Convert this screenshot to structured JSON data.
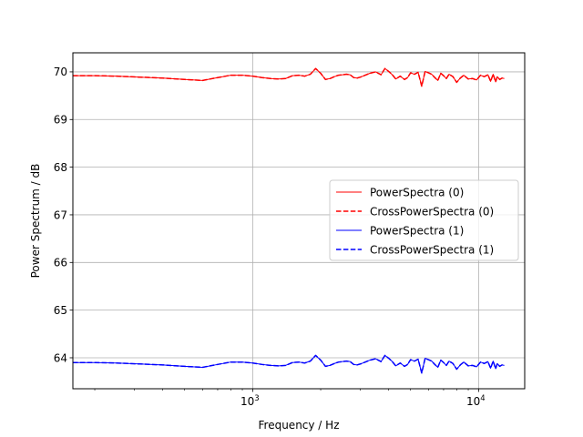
{
  "chart_data": {
    "type": "line",
    "xlabel": "Frequency / Hz",
    "ylabel": "Power Spectrum / dB",
    "xscale": "log",
    "xlim": [
      160,
      16000
    ],
    "ylim": [
      63.35,
      70.4
    ],
    "grid": true,
    "legend_position": "center-right",
    "x_major_ticks": [
      {
        "value": 1000,
        "base": "10",
        "exp": "3"
      },
      {
        "value": 10000,
        "base": "10",
        "exp": "4"
      }
    ],
    "y_ticks": [
      64,
      65,
      66,
      67,
      68,
      69,
      70
    ],
    "series": [
      {
        "name": "PowerSpectra (0)",
        "color": "#ff0000",
        "style": "solid",
        "x": [
          160,
          200,
          250,
          315,
          400,
          500,
          600,
          700,
          800,
          900,
          1000,
          1100,
          1200,
          1300,
          1400,
          1500,
          1600,
          1700,
          1800,
          1900,
          2000,
          2100,
          2200,
          2300,
          2400,
          2500,
          2600,
          2700,
          2800,
          2900,
          3000,
          3150,
          3300,
          3500,
          3700,
          3850,
          4000,
          4150,
          4300,
          4500,
          4700,
          4850,
          5000,
          5200,
          5400,
          5600,
          5800,
          6000,
          6200,
          6400,
          6600,
          6800,
          7000,
          7200,
          7400,
          7700,
          8000,
          8300,
          8600,
          9000,
          9400,
          9800,
          10200,
          10600,
          11000,
          11300,
          11600,
          11900,
          12100,
          12400,
          12700,
          13000
        ],
        "y": [
          69.92,
          69.92,
          69.91,
          69.89,
          69.87,
          69.84,
          69.82,
          69.88,
          69.93,
          69.93,
          69.91,
          69.88,
          69.86,
          69.85,
          69.86,
          69.92,
          69.93,
          69.91,
          69.95,
          70.07,
          69.97,
          69.84,
          69.86,
          69.9,
          69.93,
          69.94,
          69.95,
          69.94,
          69.88,
          69.87,
          69.89,
          69.93,
          69.97,
          70.0,
          69.94,
          70.07,
          70.01,
          69.94,
          69.85,
          69.91,
          69.84,
          69.88,
          69.98,
          69.95,
          69.99,
          69.7,
          70.01,
          69.98,
          69.95,
          69.88,
          69.82,
          69.97,
          69.92,
          69.86,
          69.95,
          69.9,
          69.78,
          69.87,
          69.93,
          69.85,
          69.86,
          69.83,
          69.93,
          69.9,
          69.94,
          69.8,
          69.95,
          69.79,
          69.9,
          69.84,
          69.87,
          69.86
        ]
      },
      {
        "name": "CrossPowerSpectra (0)",
        "color": "#ff0000",
        "style": "dashed",
        "x": [
          160,
          200,
          250,
          315,
          400,
          500,
          600,
          700,
          800,
          900,
          1000,
          1100,
          1200,
          1300,
          1400,
          1500,
          1600,
          1700,
          1800,
          1900,
          2000,
          2100,
          2200,
          2300,
          2400,
          2500,
          2600,
          2700,
          2800,
          2900,
          3000,
          3150,
          3300,
          3500,
          3700,
          3850,
          4000,
          4150,
          4300,
          4500,
          4700,
          4850,
          5000,
          5200,
          5400,
          5600,
          5800,
          6000,
          6200,
          6400,
          6600,
          6800,
          7000,
          7200,
          7400,
          7700,
          8000,
          8300,
          8600,
          9000,
          9400,
          9800,
          10200,
          10600,
          11000,
          11300,
          11600,
          11900,
          12100,
          12400,
          12700,
          13000
        ],
        "y": [
          69.92,
          69.92,
          69.91,
          69.89,
          69.87,
          69.84,
          69.82,
          69.88,
          69.93,
          69.93,
          69.91,
          69.88,
          69.86,
          69.85,
          69.86,
          69.92,
          69.93,
          69.91,
          69.95,
          70.07,
          69.97,
          69.84,
          69.86,
          69.9,
          69.93,
          69.94,
          69.95,
          69.94,
          69.88,
          69.87,
          69.89,
          69.93,
          69.97,
          70.0,
          69.94,
          70.07,
          70.01,
          69.94,
          69.85,
          69.91,
          69.84,
          69.88,
          69.98,
          69.95,
          69.99,
          69.7,
          70.01,
          69.98,
          69.95,
          69.88,
          69.82,
          69.97,
          69.92,
          69.86,
          69.95,
          69.9,
          69.78,
          69.87,
          69.93,
          69.85,
          69.86,
          69.83,
          69.93,
          69.9,
          69.94,
          69.8,
          69.95,
          69.79,
          69.9,
          69.84,
          69.87,
          69.86
        ]
      },
      {
        "name": "PowerSpectra (1)",
        "color": "#0000ff",
        "style": "solid",
        "x": [
          160,
          200,
          250,
          315,
          400,
          500,
          600,
          700,
          800,
          900,
          1000,
          1100,
          1200,
          1300,
          1400,
          1500,
          1600,
          1700,
          1800,
          1900,
          2000,
          2100,
          2200,
          2300,
          2400,
          2500,
          2600,
          2700,
          2800,
          2900,
          3000,
          3150,
          3300,
          3500,
          3700,
          3850,
          4000,
          4150,
          4300,
          4500,
          4700,
          4850,
          5000,
          5200,
          5400,
          5600,
          5800,
          6000,
          6200,
          6400,
          6600,
          6800,
          7000,
          7200,
          7400,
          7700,
          8000,
          8300,
          8600,
          9000,
          9400,
          9800,
          10200,
          10600,
          11000,
          11300,
          11600,
          11900,
          12100,
          12400,
          12700,
          13000
        ],
        "y": [
          63.9,
          63.9,
          63.89,
          63.87,
          63.85,
          63.82,
          63.8,
          63.86,
          63.91,
          63.91,
          63.89,
          63.86,
          63.84,
          63.83,
          63.84,
          63.9,
          63.91,
          63.89,
          63.93,
          64.05,
          63.95,
          63.82,
          63.84,
          63.88,
          63.91,
          63.92,
          63.93,
          63.92,
          63.86,
          63.85,
          63.87,
          63.91,
          63.95,
          63.98,
          63.92,
          64.05,
          63.99,
          63.92,
          63.83,
          63.89,
          63.82,
          63.86,
          63.96,
          63.93,
          63.97,
          63.68,
          63.99,
          63.96,
          63.93,
          63.86,
          63.8,
          63.95,
          63.9,
          63.84,
          63.93,
          63.88,
          63.76,
          63.85,
          63.91,
          63.83,
          63.84,
          63.81,
          63.91,
          63.88,
          63.92,
          63.78,
          63.93,
          63.77,
          63.88,
          63.82,
          63.85,
          63.84
        ]
      },
      {
        "name": "CrossPowerSpectra (1)",
        "color": "#0000ff",
        "style": "dashed",
        "x": [
          160,
          200,
          250,
          315,
          400,
          500,
          600,
          700,
          800,
          900,
          1000,
          1100,
          1200,
          1300,
          1400,
          1500,
          1600,
          1700,
          1800,
          1900,
          2000,
          2100,
          2200,
          2300,
          2400,
          2500,
          2600,
          2700,
          2800,
          2900,
          3000,
          3150,
          3300,
          3500,
          3700,
          3850,
          4000,
          4150,
          4300,
          4500,
          4700,
          4850,
          5000,
          5200,
          5400,
          5600,
          5800,
          6000,
          6200,
          6400,
          6600,
          6800,
          7000,
          7200,
          7400,
          7700,
          8000,
          8300,
          8600,
          9000,
          9400,
          9800,
          10200,
          10600,
          11000,
          11300,
          11600,
          11900,
          12100,
          12400,
          12700,
          13000
        ],
        "y": [
          63.9,
          63.9,
          63.89,
          63.87,
          63.85,
          63.82,
          63.8,
          63.86,
          63.91,
          63.91,
          63.89,
          63.86,
          63.84,
          63.83,
          63.84,
          63.9,
          63.91,
          63.89,
          63.93,
          64.05,
          63.95,
          63.82,
          63.84,
          63.88,
          63.91,
          63.92,
          63.93,
          63.92,
          63.86,
          63.85,
          63.87,
          63.91,
          63.95,
          63.98,
          63.92,
          64.05,
          63.99,
          63.92,
          63.83,
          63.89,
          63.82,
          63.86,
          63.96,
          63.93,
          63.97,
          63.68,
          63.99,
          63.96,
          63.93,
          63.86,
          63.8,
          63.95,
          63.9,
          63.84,
          63.93,
          63.88,
          63.76,
          63.85,
          63.91,
          63.83,
          63.84,
          63.81,
          63.91,
          63.88,
          63.92,
          63.78,
          63.93,
          63.77,
          63.88,
          63.82,
          63.85,
          63.84
        ]
      }
    ]
  }
}
